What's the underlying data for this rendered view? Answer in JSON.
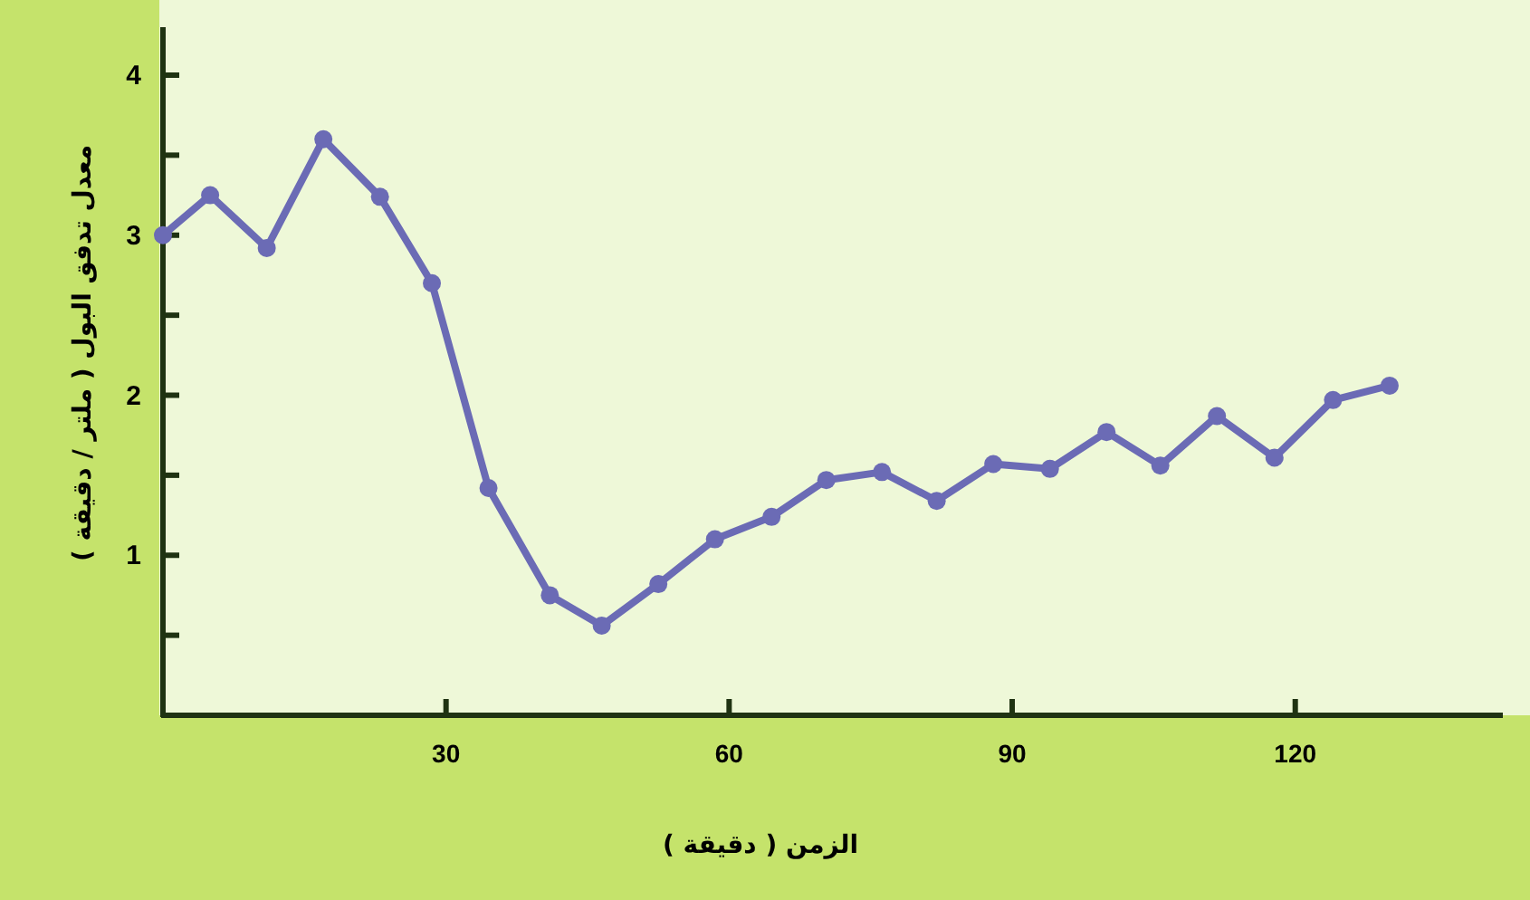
{
  "chart_data": {
    "type": "line",
    "xlabel": "الزمن ( دقيقة )",
    "ylabel": "معدل تدفق البول ( ملتر / دقيقة )",
    "x": [
      0,
      5,
      11,
      17,
      23,
      28.5,
      34.5,
      41,
      46.5,
      52.5,
      58.5,
      64.5,
      70.3,
      76.2,
      82,
      88,
      94,
      100,
      105.7,
      111.7,
      117.8,
      124,
      130
    ],
    "series": [
      {
        "color": "#6b6bb5",
        "values": [
          3.0,
          3.25,
          2.92,
          3.6,
          3.24,
          2.7,
          1.42,
          0.75,
          0.56,
          0.82,
          1.1,
          1.24,
          1.47,
          1.52,
          1.34,
          1.57,
          1.54,
          1.77,
          1.56,
          1.87,
          1.61,
          1.97,
          2.06
        ]
      }
    ],
    "xlim": [
      0,
      142
    ],
    "ylim": [
      0,
      4.3
    ],
    "xticks": [
      30,
      60,
      90,
      120
    ],
    "yticks": [
      {
        "value": 0.5,
        "label": null
      },
      1,
      {
        "value": 1.5,
        "label": null
      },
      2,
      {
        "value": 2.5,
        "label": null
      },
      3,
      {
        "value": 3.5,
        "label": null
      },
      4
    ],
    "marker": "circle",
    "line_style": "solid",
    "grid": false
  }
}
